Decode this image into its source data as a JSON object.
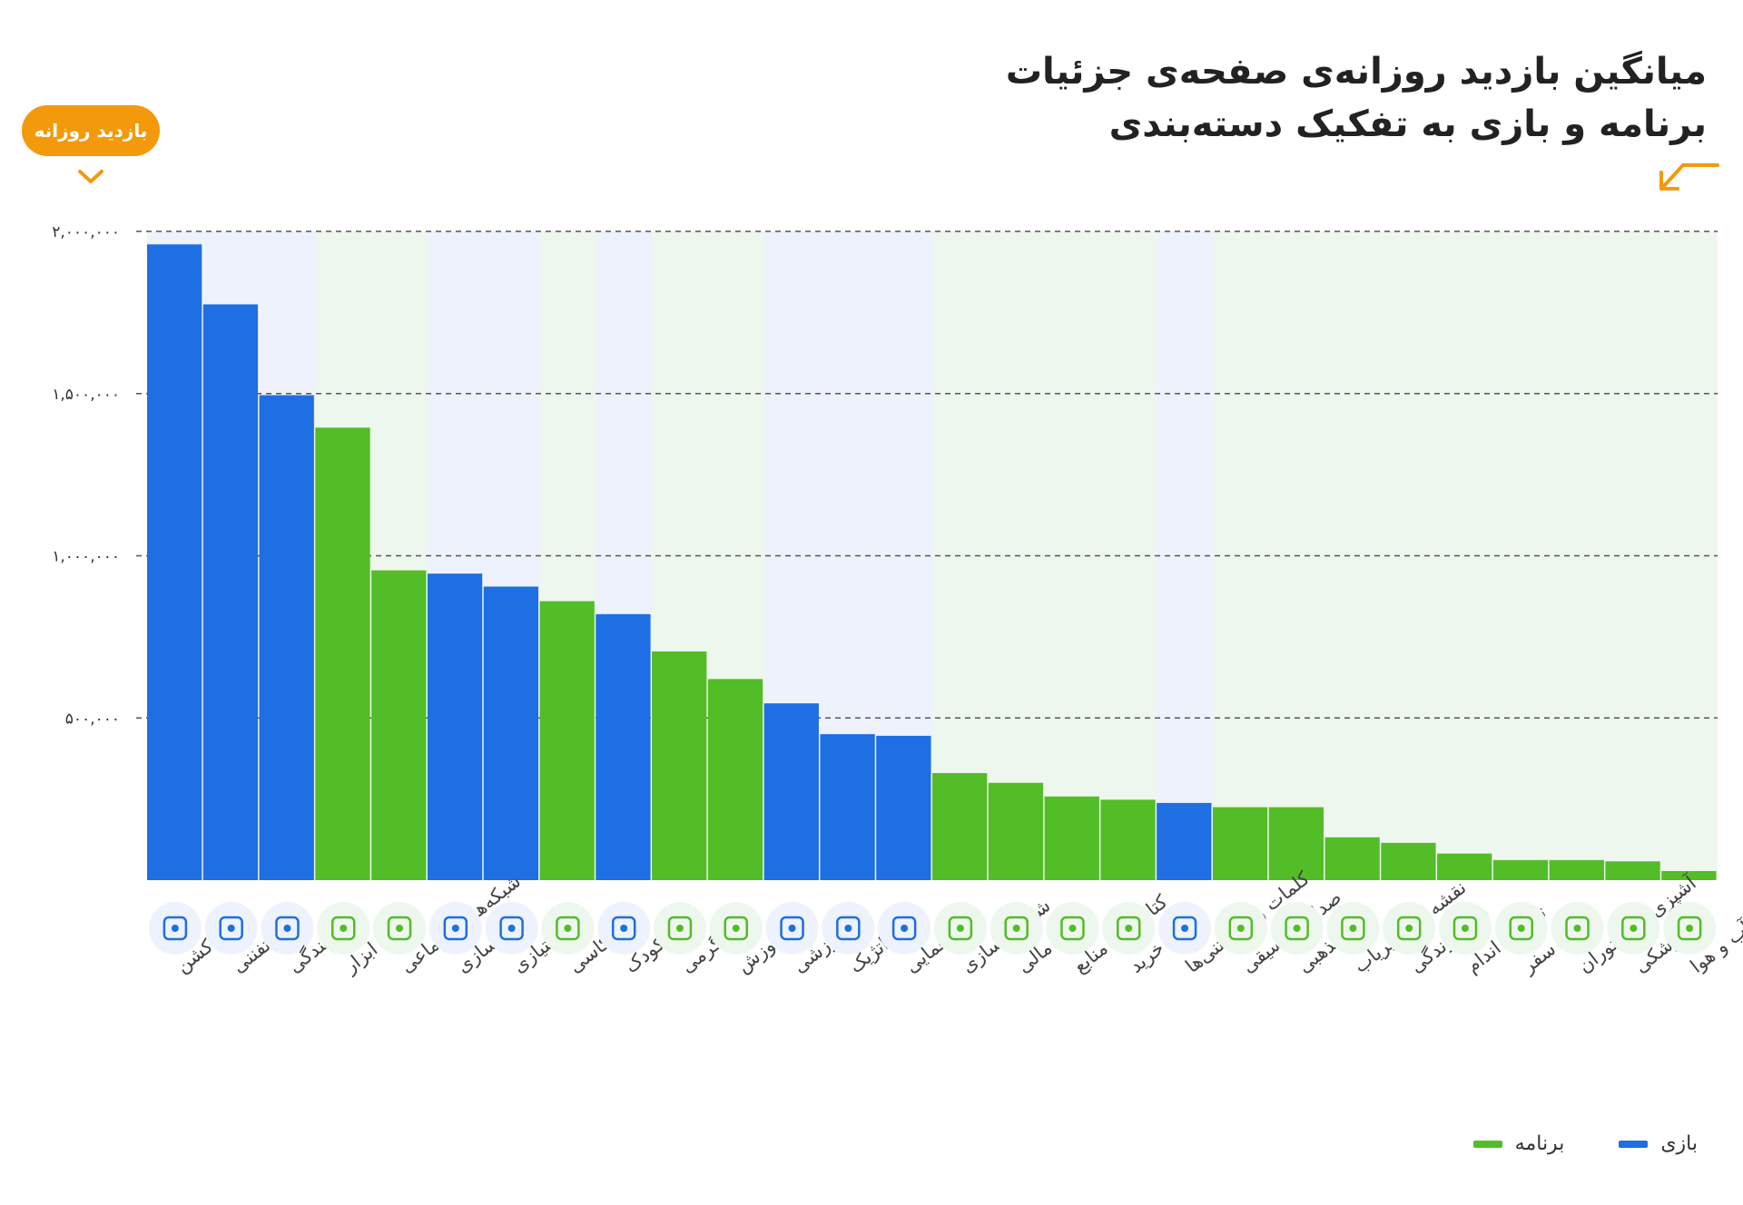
{
  "header": {
    "title_line1": "میانگین بازدید روزانه‌ی صفحه‌ی جزئیات",
    "title_line2": "برنامه و بازی به تفکیک دسته‌بندی",
    "badge_label": "بازدید روزانه",
    "arrow_icon": "arrow-down-left-icon",
    "chevron_icon": "chevron-down-icon"
  },
  "legend": {
    "game_label": "بازی",
    "app_label": "برنامه"
  },
  "colors": {
    "game": "#1d6fe3",
    "app": "#52bd26",
    "game_bg": "#edf2fc",
    "app_bg": "#eef7ee",
    "accent": "#f29a0c",
    "grid": "#555555"
  },
  "chart_data": {
    "type": "bar",
    "title": "میانگین بازدید روزانه‌ی صفحه‌ی جزئیات برنامه و بازی به تفکیک دسته‌بندی",
    "ylabel": "بازدید روزانه",
    "xlabel": "",
    "ylim": [
      0,
      2000000
    ],
    "grid": true,
    "yticks": [
      500000,
      1000000,
      1500000,
      2000000
    ],
    "ytick_labels": [
      "۵۰۰,۰۰۰",
      "۱,۰۰۰,۰۰۰",
      "۱,۵۰۰,۰۰۰",
      "۲,۰۰۰,۰۰۰"
    ],
    "legend_position": "bottom-right",
    "categories": [
      "اکشن",
      "تفننی",
      "رانندگی",
      "ابزار",
      "شبکه‌های اجتماعی",
      "شبیه‌سازی",
      "امتیازی",
      "عکاسی",
      "کودک",
      "سرگرمی",
      "آموزش",
      "ورزشی",
      "استراتژیک",
      "معمایی",
      "شخصی‌سازی",
      "امور مالی",
      "کتاب‌ها و منابع",
      "خرید",
      "کلمات و دانستنی‌ها",
      "صدا و موسیقی",
      "مذهبی",
      "نقشه و مسیریاب",
      "سبک زندگی",
      "تناسب اندام",
      "سفر",
      "آشپزی و رستوران",
      "پزشکی",
      "آب و هوا"
    ],
    "values": [
      1960000,
      1775000,
      1495000,
      1395000,
      955000,
      945000,
      905000,
      860000,
      820000,
      705000,
      620000,
      545000,
      450000,
      445000,
      330000,
      300000,
      258000,
      248000,
      238000,
      225000,
      225000,
      132000,
      115000,
      82000,
      62000,
      62000,
      58000,
      28000
    ],
    "kinds": [
      "game",
      "game",
      "game",
      "app",
      "app",
      "game",
      "game",
      "app",
      "game",
      "app",
      "app",
      "game",
      "game",
      "game",
      "app",
      "app",
      "app",
      "app",
      "game",
      "app",
      "app",
      "app",
      "app",
      "app",
      "app",
      "app",
      "app",
      "app"
    ],
    "icons": [
      "gun-icon",
      "tic-tac-toe-icon",
      "steering-wheel-icon",
      "tools-icon",
      "social-profile-icon",
      "vr-goggles-icon",
      "trophy-icon",
      "camera-icon",
      "pinwheel-icon",
      "puzzle-icon",
      "graduation-cap-icon",
      "soccer-ball-icon",
      "castle-tower-icon",
      "question-mark-icon",
      "image-icon",
      "wallet-icon",
      "book-icon",
      "shopping-cart-icon",
      "alphabet-icon",
      "music-note-icon",
      "mosque-icon",
      "car-icon",
      "sofa-icon",
      "dumbbell-icon",
      "suitcase-icon",
      "cooking-pot-icon",
      "medicine-bottle-icon",
      "weather-cloud-icon"
    ]
  }
}
